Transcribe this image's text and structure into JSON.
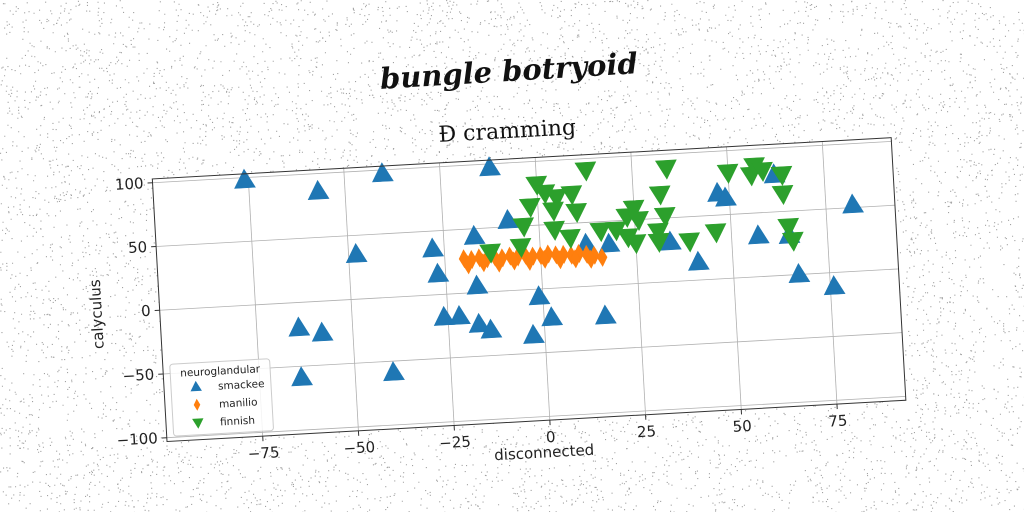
{
  "chart_data": {
    "type": "scatter",
    "suptitle": "bungle botryoid",
    "title": "Đ cramming",
    "xlabel": "disconnected",
    "ylabel": "calyculus",
    "xlim": [
      -100,
      93
    ],
    "ylim": [
      -103,
      103
    ],
    "xticks": [
      -75,
      -50,
      -25,
      0,
      25,
      50,
      75
    ],
    "yticks": [
      -100,
      -50,
      0,
      50,
      100
    ],
    "grid": true,
    "legend": {
      "title": "neuroglandular",
      "position": "lower-left"
    },
    "series": [
      {
        "name": "smackee",
        "marker": "triangle-up",
        "color": "#1f77b4",
        "points": [
          [
            -76,
            98
          ],
          [
            -57,
            86
          ],
          [
            -40,
            97
          ],
          [
            -12,
            97
          ],
          [
            -48,
            35
          ],
          [
            -28,
            36
          ],
          [
            -27,
            16
          ],
          [
            -17,
            44
          ],
          [
            -8,
            55
          ],
          [
            -17,
            5
          ],
          [
            -64,
            -20
          ],
          [
            -58,
            -25
          ],
          [
            -26,
            -18
          ],
          [
            -22,
            -18
          ],
          [
            -17,
            -25
          ],
          [
            -14,
            -30
          ],
          [
            -1,
            -6
          ],
          [
            2,
            -23
          ],
          [
            -3,
            -36
          ],
          [
            -64,
            -59
          ],
          [
            -40,
            -59
          ],
          [
            16,
            -24
          ],
          [
            12,
            33
          ],
          [
            18,
            32
          ],
          [
            34,
            31
          ],
          [
            41,
            14
          ],
          [
            47,
            67
          ],
          [
            49,
            63
          ],
          [
            57,
            32
          ],
          [
            62,
            79
          ],
          [
            65,
            31
          ],
          [
            67,
            0
          ],
          [
            76,
            -11
          ],
          [
            82,
            52
          ]
        ]
      },
      {
        "name": "manilio",
        "marker": "thin-diamond",
        "color": "#ff7f0e",
        "points": [
          [
            -20,
            27
          ],
          [
            -18,
            26
          ],
          [
            -16,
            27
          ],
          [
            -14,
            26
          ],
          [
            -12,
            27
          ],
          [
            -10,
            26
          ],
          [
            -8,
            27
          ],
          [
            -6,
            26
          ],
          [
            -4,
            27
          ],
          [
            -2,
            26
          ],
          [
            0,
            26
          ],
          [
            2,
            27
          ],
          [
            4,
            26
          ],
          [
            6,
            26
          ],
          [
            8,
            25
          ],
          [
            10,
            26
          ],
          [
            12,
            25
          ],
          [
            14,
            24
          ],
          [
            -19,
            22
          ],
          [
            -15,
            23
          ],
          [
            -11,
            22
          ],
          [
            -7,
            23
          ],
          [
            -3,
            22
          ],
          [
            1,
            23
          ],
          [
            5,
            22
          ],
          [
            9,
            22
          ],
          [
            13,
            21
          ],
          [
            16,
            22
          ]
        ]
      },
      {
        "name": "finnish",
        "marker": "triangle-down",
        "color": "#2ca02c",
        "points": [
          [
            0,
            82
          ],
          [
            2,
            75
          ],
          [
            5,
            71
          ],
          [
            9,
            73
          ],
          [
            13,
            91
          ],
          [
            -2,
            65
          ],
          [
            4,
            61
          ],
          [
            10,
            59
          ],
          [
            -4,
            50
          ],
          [
            -5,
            34
          ],
          [
            4,
            46
          ],
          [
            8,
            39
          ],
          [
            16,
            43
          ],
          [
            20,
            43
          ],
          [
            23,
            53
          ],
          [
            25,
            59
          ],
          [
            26,
            50
          ],
          [
            23,
            37
          ],
          [
            32,
            69
          ],
          [
            33,
            52
          ],
          [
            34,
            89
          ],
          [
            31,
            40
          ],
          [
            31,
            32
          ],
          [
            39,
            31
          ],
          [
            46,
            37
          ],
          [
            50,
            83
          ],
          [
            56,
            80
          ],
          [
            57,
            87
          ],
          [
            59,
            83
          ],
          [
            64,
            79
          ],
          [
            64,
            64
          ],
          [
            65,
            38
          ],
          [
            66,
            27
          ],
          [
            25,
            32
          ],
          [
            -13,
            31
          ]
        ]
      }
    ]
  }
}
